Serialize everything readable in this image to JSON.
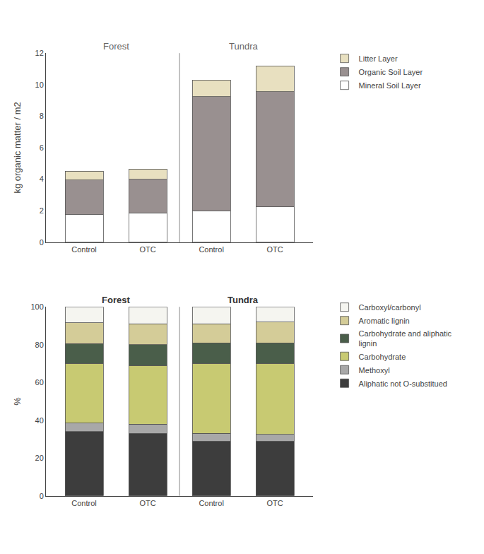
{
  "chart_data": [
    {
      "type": "bar",
      "stacked": true,
      "grid": false,
      "legend": "right",
      "ylabel": "kg organic matter / m2",
      "categories": [
        "Control",
        "OTC",
        "Control",
        "OTC"
      ],
      "annotations": [
        "Forest",
        "Tundra"
      ],
      "ylim": [
        0,
        12
      ],
      "yticks": [
        0,
        2,
        4,
        6,
        8,
        10,
        12
      ],
      "series": [
        {
          "name": "Mineral Soil Layer",
          "color": "#ffffff",
          "values": [
            1.75,
            1.85,
            2.0,
            2.25
          ]
        },
        {
          "name": "Organic Soil Layer",
          "color": "#999090",
          "values": [
            2.2,
            2.15,
            7.25,
            7.3
          ]
        },
        {
          "name": "Litter Layer",
          "color": "#e8e0c0",
          "values": [
            0.55,
            0.65,
            1.05,
            1.65
          ]
        }
      ]
    },
    {
      "type": "bar",
      "stacked": true,
      "grid": false,
      "legend": "right",
      "ylabel": "%",
      "categories": [
        "Control",
        "OTC",
        "Control",
        "OTC"
      ],
      "annotations": [
        "Forest",
        "Tundra"
      ],
      "ylim": [
        0,
        100
      ],
      "yticks": [
        0,
        20,
        40,
        60,
        80,
        100
      ],
      "series": [
        {
          "name": "Aliphatic not O-substitued",
          "color": "#3d3d3d",
          "values": [
            34,
            33,
            29,
            29
          ]
        },
        {
          "name": "Methoxyl",
          "color": "#a8a8a8",
          "values": [
            4.5,
            5.0,
            4.0,
            3.5
          ]
        },
        {
          "name": "Carbohydrate",
          "color": "#c8ca72",
          "values": [
            31.5,
            31.0,
            37.0,
            37.5
          ]
        },
        {
          "name": "Carbohydrate and aliphatic\nlignin",
          "color": "#4a5e4a",
          "values": [
            10.5,
            11.0,
            11.0,
            11.0
          ]
        },
        {
          "name": "Aromatic lignin",
          "color": "#d4cc98",
          "values": [
            11.0,
            11.0,
            10.0,
            11.0
          ]
        },
        {
          "name": "Carboxyl/carbonyl",
          "color": "#f5f5f0",
          "values": [
            8.5,
            9.0,
            9.0,
            8.0
          ]
        }
      ]
    }
  ]
}
